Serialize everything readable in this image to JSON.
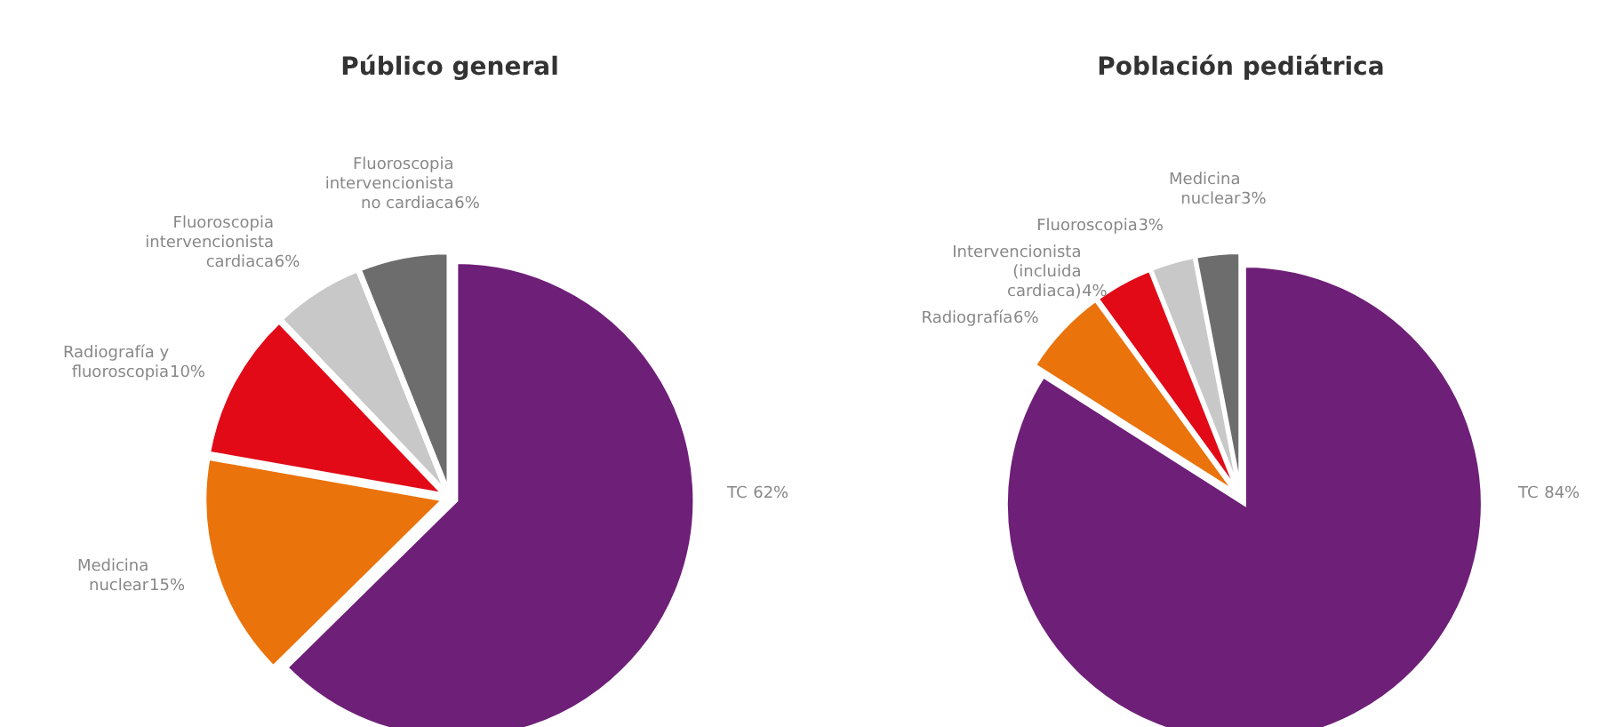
{
  "chart_data": [
    {
      "type": "pie",
      "title": "Público general",
      "categories": [
        "TC",
        "Medicina nuclear",
        "Radiografía y fluoroscopia",
        "Fluoroscopia intervencionista cardiaca",
        "Fluoroscopia intervencionista no cardiaca"
      ],
      "values": [
        62,
        15,
        10,
        6,
        6
      ],
      "colors": [
        "#6e1f77",
        "#ea730b",
        "#e20a17",
        "#c8c8c8",
        "#6d6d6d"
      ],
      "value_labels": [
        "62%",
        "15%",
        "10%",
        "6%",
        "6%"
      ]
    },
    {
      "type": "pie",
      "title": "Población pediátrica",
      "categories": [
        "TC",
        "Radiografía",
        "Intervencionista (incluida cardiaca)",
        "Fluoroscopia",
        "Medicina nuclear"
      ],
      "values": [
        84,
        6,
        4,
        3,
        3
      ],
      "colors": [
        "#6e1f77",
        "#ea730b",
        "#e20a17",
        "#c8c8c8",
        "#6d6d6d"
      ],
      "value_labels": [
        "84%",
        "6%",
        "4%",
        "3%",
        "3%"
      ]
    }
  ]
}
